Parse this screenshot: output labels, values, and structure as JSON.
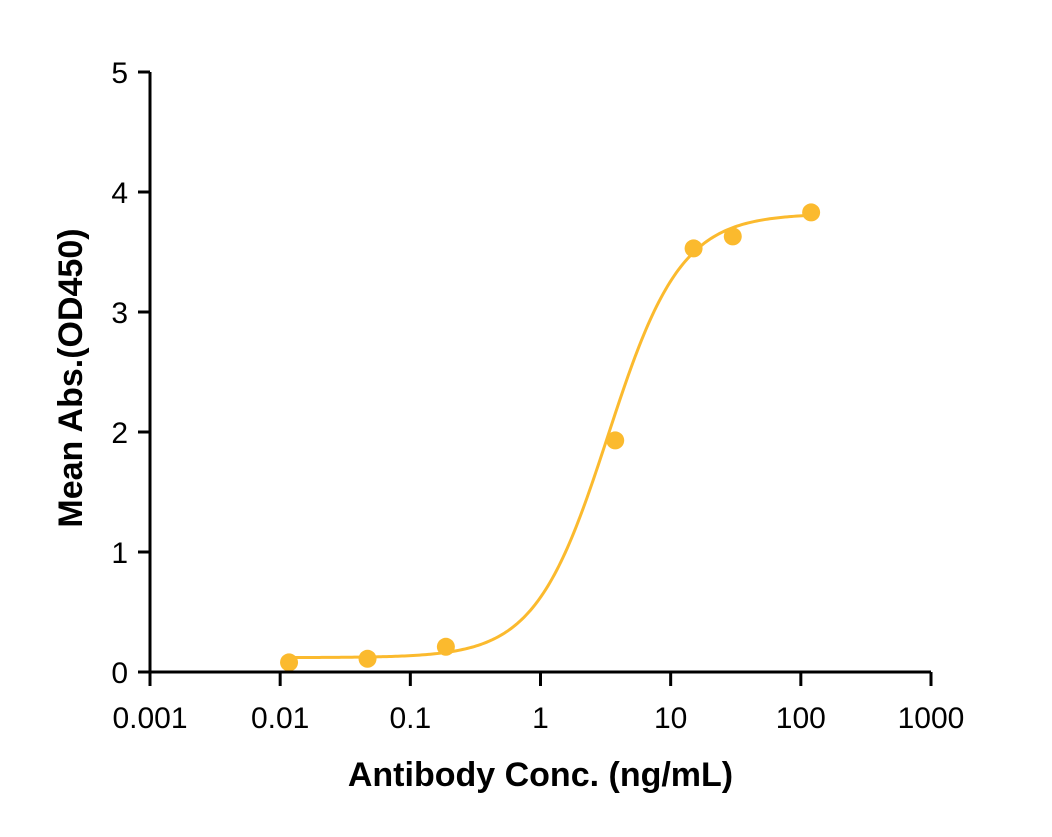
{
  "chart_data": {
    "type": "scatter",
    "title": "",
    "xlabel": "Antibody Conc. (ng/mL)",
    "ylabel": "Mean Abs.(OD450)",
    "x_scale": "log",
    "xlim": [
      0.001,
      1000
    ],
    "ylim": [
      0,
      5
    ],
    "x_ticks": [
      0.001,
      0.01,
      0.1,
      1,
      10,
      100,
      1000
    ],
    "x_tick_labels": [
      "0.001",
      "0.01",
      "0.1",
      "1",
      "10",
      "100",
      "1000"
    ],
    "y_ticks": [
      0,
      1,
      2,
      3,
      4,
      5
    ],
    "y_tick_labels": [
      "0",
      "1",
      "2",
      "3",
      "4",
      "5"
    ],
    "grid": false,
    "series": [
      {
        "color": "#FBBA2E",
        "points": [
          {
            "x": 0.0117,
            "y": 0.08
          },
          {
            "x": 0.0469,
            "y": 0.11
          },
          {
            "x": 0.1875,
            "y": 0.21
          },
          {
            "x": 3.75,
            "y": 1.93
          },
          {
            "x": 15,
            "y": 3.53
          },
          {
            "x": 30,
            "y": 3.63
          },
          {
            "x": 120,
            "y": 3.83
          }
        ],
        "fit": {
          "model": "4PL",
          "bottom": 0.12,
          "top": 3.82,
          "ec50": 3.3,
          "hill": 1.55
        }
      }
    ]
  }
}
